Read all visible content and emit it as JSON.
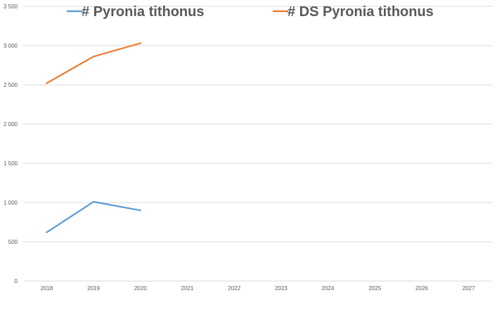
{
  "chart_data": {
    "type": "line",
    "title": "",
    "xlabel": "",
    "ylabel": "",
    "categories": [
      "2018",
      "2019",
      "2020",
      "2021",
      "2022",
      "2023",
      "2024",
      "2025",
      "2026",
      "2027"
    ],
    "y_tick_labels": [
      "0",
      "500",
      "1 000",
      "1 500",
      "2 000",
      "2 500",
      "3 000",
      "3 500"
    ],
    "y_ticks": [
      0,
      500,
      1000,
      1500,
      2000,
      2500,
      3000,
      3500
    ],
    "ylim": [
      0,
      3500
    ],
    "grid": true,
    "legend_position": "top",
    "series": [
      {
        "name": "# Pyronia tithonus",
        "color": "#5b9bd5",
        "values": [
          620,
          1010,
          900,
          null,
          null,
          null,
          null,
          null,
          null,
          null
        ]
      },
      {
        "name": "# DS Pyronia tithonus",
        "color": "#ed7d31",
        "values": [
          2520,
          2860,
          3030,
          null,
          null,
          null,
          null,
          null,
          null,
          null
        ]
      }
    ]
  }
}
